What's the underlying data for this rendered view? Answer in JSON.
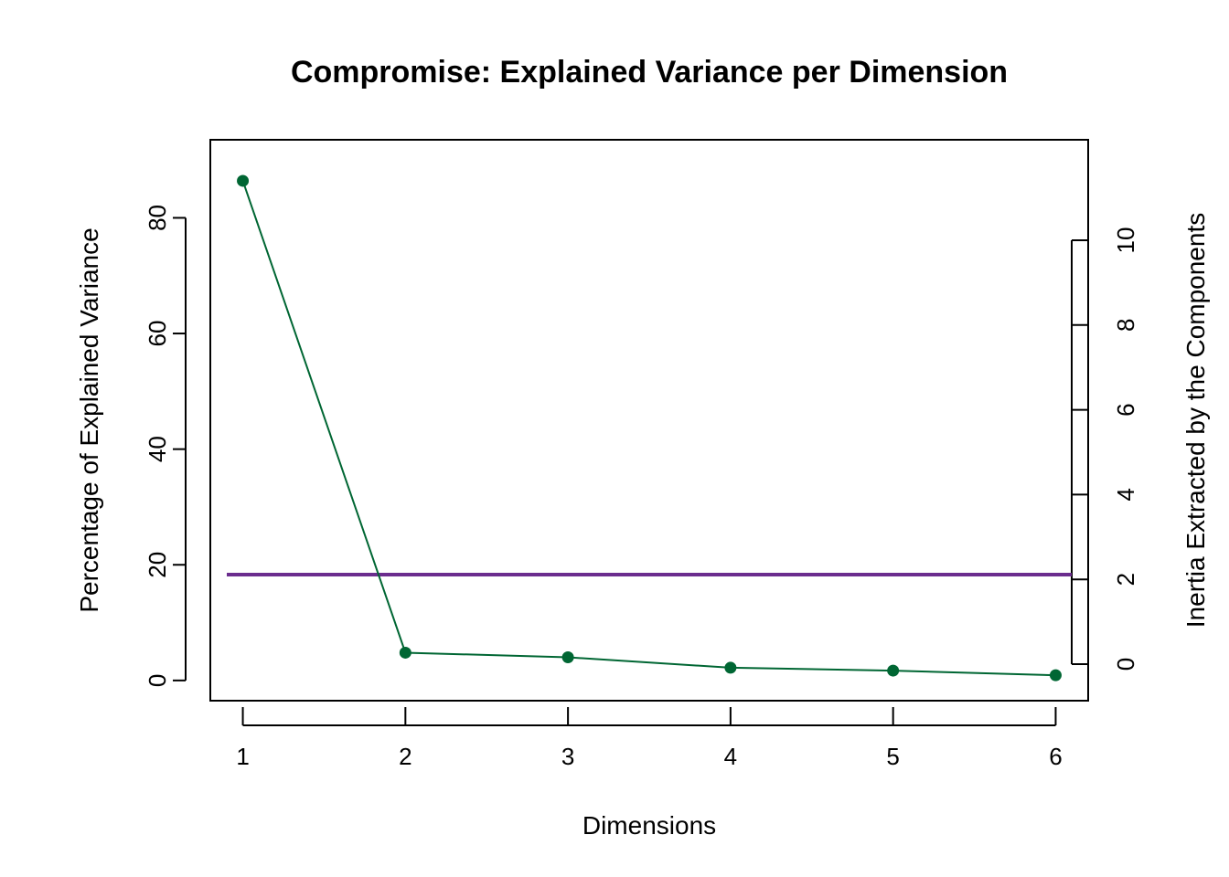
{
  "chart_data": {
    "type": "line",
    "title": "Compromise: Explained Variance per Dimension",
    "xlabel": "Dimensions",
    "ylabel": "Percentage of Explained Variance",
    "y2label": "Inertia Extracted by the Components",
    "x": [
      1,
      2,
      3,
      4,
      5,
      6
    ],
    "x_ticks": [
      "1",
      "2",
      "3",
      "4",
      "5",
      "6"
    ],
    "y_ticks": [
      "0",
      "20",
      "40",
      "60",
      "80"
    ],
    "y2_ticks": [
      "0",
      "2",
      "4",
      "6",
      "8",
      "10"
    ],
    "xlim": [
      0.8,
      6.2
    ],
    "ylim": [
      -3.5,
      93.5
    ],
    "y2lim": [
      0,
      10
    ],
    "grid": false,
    "series": [
      {
        "values": [
          86.4,
          4.8,
          4.0,
          2.2,
          1.7,
          0.9
        ],
        "color": "#006633",
        "marker": "circle"
      }
    ],
    "reference_line": {
      "y": 18.3,
      "color": "#6B2D8E"
    }
  }
}
